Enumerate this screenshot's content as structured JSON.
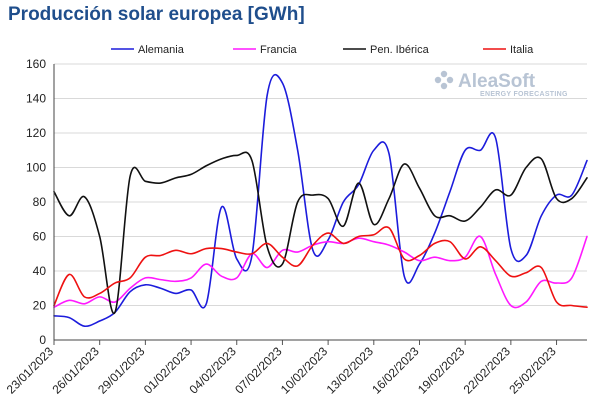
{
  "title": "Producción solar europea [GWh]",
  "logo": {
    "name": "AleaSoft",
    "tagline": "ENERGY FORECASTING",
    "icon": "aleasoft-logo-icon"
  },
  "chart_data": {
    "type": "line",
    "title": "Producción solar europea [GWh]",
    "xlabel": "",
    "ylabel": "",
    "ylim": [
      0,
      160
    ],
    "yticks": [
      0,
      20,
      40,
      60,
      80,
      100,
      120,
      140,
      160
    ],
    "grid": true,
    "legend_position": "top",
    "x": [
      "23/01/2023",
      "24/01/2023",
      "25/01/2023",
      "26/01/2023",
      "27/01/2023",
      "28/01/2023",
      "29/01/2023",
      "30/01/2023",
      "31/01/2023",
      "01/02/2023",
      "02/02/2023",
      "03/02/2023",
      "04/02/2023",
      "05/02/2023",
      "06/02/2023",
      "07/02/2023",
      "08/02/2023",
      "09/02/2023",
      "10/02/2023",
      "11/02/2023",
      "12/02/2023",
      "13/02/2023",
      "14/02/2023",
      "15/02/2023",
      "16/02/2023",
      "17/02/2023",
      "18/02/2023",
      "19/02/2023",
      "20/02/2023",
      "21/02/2023",
      "22/02/2023",
      "23/02/2023",
      "24/02/2023",
      "25/02/2023",
      "26/02/2023",
      "27/02/2023"
    ],
    "x_tick_labels": [
      "23/01/2023",
      "26/01/2023",
      "29/01/2023",
      "01/02/2023",
      "04/02/2023",
      "07/02/2023",
      "10/02/2023",
      "13/02/2023",
      "16/02/2023",
      "19/02/2023",
      "22/02/2023",
      "25/02/2023"
    ],
    "series": [
      {
        "name": "Alemania",
        "color": "#1c1cdc",
        "values": [
          14,
          13,
          8,
          11,
          16,
          28,
          32,
          30,
          27,
          29,
          21,
          77,
          47,
          49,
          142,
          149,
          110,
          52,
          58,
          80,
          90,
          110,
          108,
          37,
          44,
          62,
          86,
          110,
          110,
          117,
          53,
          49,
          72,
          84,
          84,
          104
        ]
      },
      {
        "name": "Francia",
        "color": "#ff19ff",
        "values": [
          19,
          23,
          21,
          25,
          22,
          30,
          36,
          35,
          34,
          36,
          44,
          37,
          36,
          50,
          42,
          52,
          51,
          55,
          57,
          56,
          59,
          57,
          55,
          51,
          46,
          48,
          46,
          48,
          60,
          38,
          20,
          22,
          34,
          33,
          36,
          60
        ]
      },
      {
        "name": "Pen. Ibérica",
        "color": "#111111",
        "values": [
          86,
          72,
          83,
          60,
          16,
          95,
          92,
          91,
          94,
          96,
          101,
          105,
          107,
          104,
          54,
          44,
          80,
          84,
          82,
          66,
          91,
          67,
          82,
          102,
          88,
          72,
          72,
          69,
          77,
          87,
          84,
          100,
          105,
          82,
          82,
          94
        ]
      },
      {
        "name": "Italia",
        "color": "#ee1111",
        "values": [
          20,
          38,
          25,
          27,
          33,
          36,
          48,
          49,
          52,
          50,
          53,
          53,
          51,
          50,
          56,
          48,
          43,
          55,
          62,
          56,
          60,
          61,
          65,
          47,
          49,
          56,
          57,
          47,
          54,
          46,
          37,
          39,
          42,
          22,
          20,
          19
        ]
      }
    ]
  }
}
